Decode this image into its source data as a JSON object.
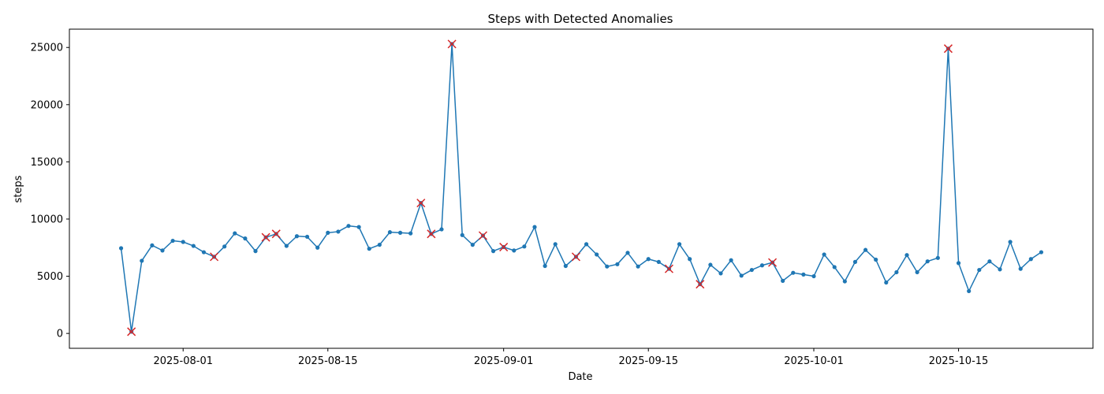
{
  "chart_data": {
    "type": "line",
    "title": "Steps with Detected Anomalies",
    "xlabel": "Date",
    "ylabel": "steps",
    "x_start": "2025-07-26",
    "xlim": [
      "2025-07-21",
      "2025-10-28"
    ],
    "ylim": [
      -1300,
      26600
    ],
    "x_ticks": [
      {
        "date": "2025-08-01",
        "label": "2025-08-01"
      },
      {
        "date": "2025-08-15",
        "label": "2025-08-15"
      },
      {
        "date": "2025-09-01",
        "label": "2025-09-01"
      },
      {
        "date": "2025-09-15",
        "label": "2025-09-15"
      },
      {
        "date": "2025-10-01",
        "label": "2025-10-01"
      },
      {
        "date": "2025-10-15",
        "label": "2025-10-15"
      }
    ],
    "y_ticks": [
      0,
      5000,
      10000,
      15000,
      20000,
      25000
    ],
    "grid": false,
    "line_color": "#1f77b4",
    "anomaly_color": "#d62728",
    "series": [
      {
        "values": [
          7450,
          150,
          6350,
          7700,
          7250,
          8100,
          8000,
          7650,
          7100,
          6700,
          7600,
          8750,
          8300,
          7200,
          8400,
          8700,
          7650,
          8500,
          8450,
          7500,
          8800,
          8900,
          9400,
          9300,
          7400,
          7750,
          8850,
          8800,
          8750,
          11400,
          8700,
          9100,
          25300,
          8600,
          7750,
          8550,
          7200,
          7550,
          7250,
          7600,
          9300,
          5900,
          7800,
          5900,
          6700,
          7800,
          6900,
          5850,
          6050,
          7050,
          5850,
          6500,
          6250,
          5650,
          7800,
          6500,
          4300,
          6000,
          5250,
          6400,
          5050,
          5550,
          5950,
          6200,
          4600,
          5300,
          5150,
          5000,
          6900,
          5800,
          4550,
          6250,
          7300,
          6450,
          4450,
          5350,
          6850,
          5350,
          6300,
          6600,
          24900,
          6150,
          3700,
          5550,
          6300,
          5600,
          8000,
          5650,
          6500,
          7100
        ]
      }
    ],
    "anomalies": [
      {
        "date": "2025-07-27",
        "value": 150
      },
      {
        "date": "2025-08-04",
        "value": 6700
      },
      {
        "date": "2025-08-09",
        "value": 8400
      },
      {
        "date": "2025-08-10",
        "value": 8700
      },
      {
        "date": "2025-08-24",
        "value": 11400
      },
      {
        "date": "2025-08-25",
        "value": 8700
      },
      {
        "date": "2025-08-27",
        "value": 25300
      },
      {
        "date": "2025-08-30",
        "value": 8550
      },
      {
        "date": "2025-09-01",
        "value": 7550
      },
      {
        "date": "2025-09-08",
        "value": 6700
      },
      {
        "date": "2025-09-17",
        "value": 5650
      },
      {
        "date": "2025-09-20",
        "value": 4300
      },
      {
        "date": "2025-09-27",
        "value": 6200
      },
      {
        "date": "2025-10-14",
        "value": 24900
      }
    ]
  }
}
